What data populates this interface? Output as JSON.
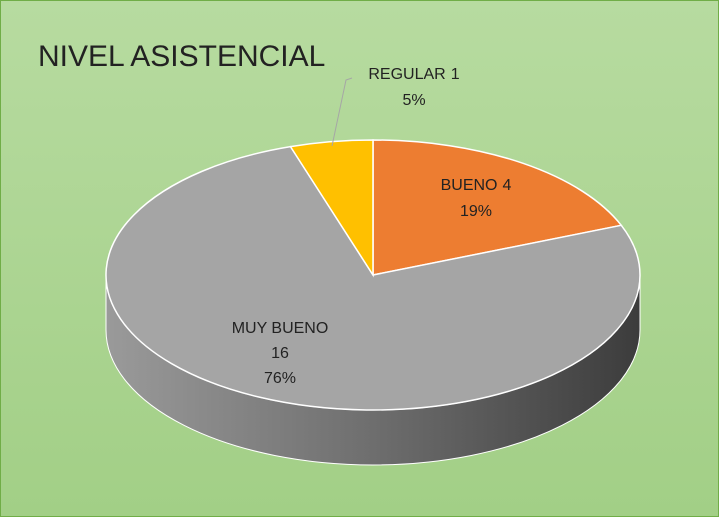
{
  "chart_data": {
    "type": "pie",
    "title": "NIVEL ASISTENCIAL",
    "categories": [
      "BUENO",
      "MUY BUENO",
      "REGULAR"
    ],
    "counts": [
      4,
      16,
      1
    ],
    "values": [
      19,
      76,
      5
    ],
    "value_labels": [
      "19%",
      "76%",
      "5%"
    ],
    "colors": [
      "#ed7d31",
      "#a5a5a5",
      "#ffc000"
    ]
  }
}
